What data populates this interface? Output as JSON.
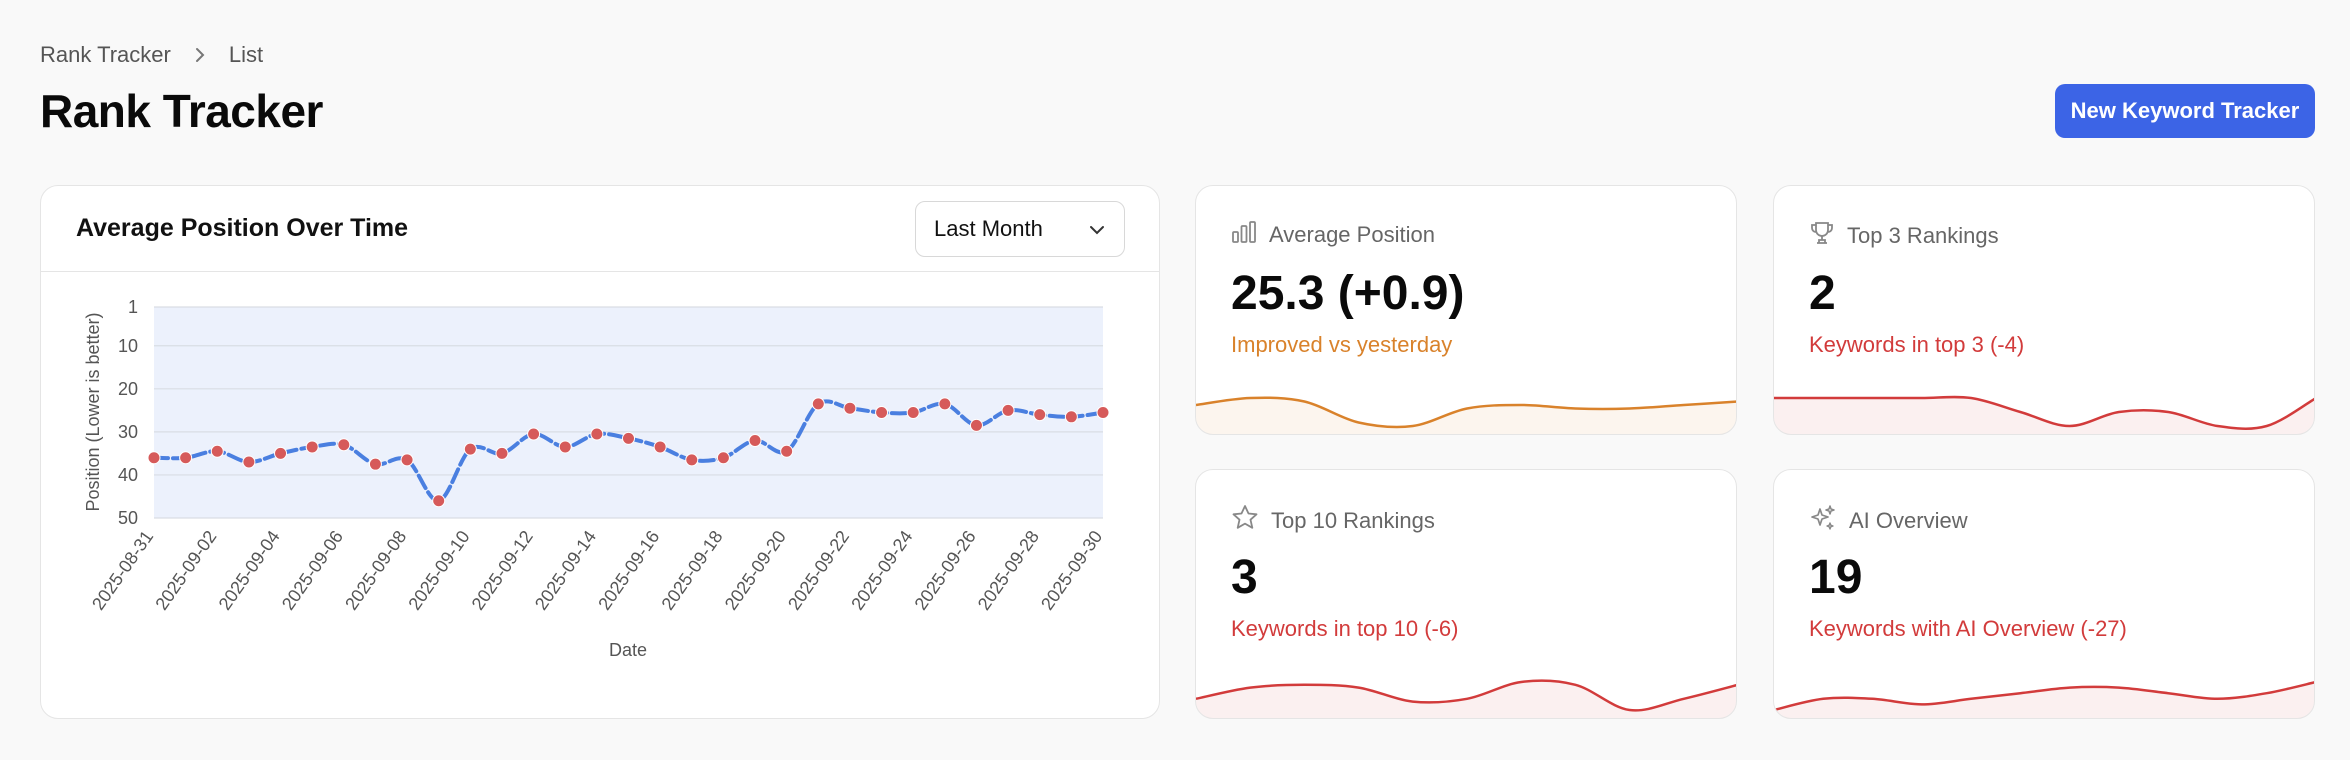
{
  "breadcrumb": {
    "root": "Rank Tracker",
    "current": "List"
  },
  "page": {
    "title": "Rank Tracker"
  },
  "actions": {
    "new_tracker_label": "New Keyword Tracker"
  },
  "colors": {
    "accent": "#3c64e6",
    "line": "#4a7fe0",
    "point": "#d65a5a",
    "improved": "#d9822b",
    "declined": "#d23b3b"
  },
  "chart_card": {
    "title": "Average Position Over Time",
    "range_select": {
      "value": "Last Month"
    }
  },
  "chart_data": {
    "type": "line",
    "title": "Average Position Over Time",
    "xlabel": "Date",
    "ylabel": "Position (Lower is better)",
    "y_inverted": true,
    "ylim": [
      1,
      50
    ],
    "y_ticks": [
      1,
      10,
      20,
      30,
      40,
      50
    ],
    "grid": true,
    "x_tick_labels": [
      "2025-08-31",
      "2025-09-02",
      "2025-09-04",
      "2025-09-06",
      "2025-09-08",
      "2025-09-10",
      "2025-09-12",
      "2025-09-14",
      "2025-09-16",
      "2025-09-18",
      "2025-09-20",
      "2025-09-22",
      "2025-09-24",
      "2025-09-26",
      "2025-09-28",
      "2025-09-30"
    ],
    "x": [
      "2025-08-31",
      "2025-09-01",
      "2025-09-02",
      "2025-09-03",
      "2025-09-04",
      "2025-09-05",
      "2025-09-06",
      "2025-09-07",
      "2025-09-08",
      "2025-09-09",
      "2025-09-10",
      "2025-09-11",
      "2025-09-12",
      "2025-09-13",
      "2025-09-14",
      "2025-09-15",
      "2025-09-16",
      "2025-09-17",
      "2025-09-18",
      "2025-09-19",
      "2025-09-20",
      "2025-09-21",
      "2025-09-22",
      "2025-09-23",
      "2025-09-24",
      "2025-09-25",
      "2025-09-26",
      "2025-09-27",
      "2025-09-28",
      "2025-09-29",
      "2025-09-30"
    ],
    "values": [
      36,
      36,
      34.5,
      37,
      35,
      33.5,
      33,
      37.5,
      36.5,
      46,
      34,
      35,
      30.5,
      33.5,
      30.5,
      31.5,
      33.5,
      36.5,
      36,
      32,
      34.5,
      23.5,
      24.5,
      25.5,
      25.5,
      23.5,
      28.5,
      25,
      26,
      26.5,
      25.5
    ]
  },
  "stats": [
    {
      "title": "Average Position",
      "icon": "bar-chart-icon",
      "value": "25.3 (+0.9)",
      "sub": "Improved vs yesterday",
      "tone": "improved",
      "trend": [
        5,
        3,
        4,
        10,
        11,
        6,
        5,
        6,
        6,
        5,
        4
      ]
    },
    {
      "title": "Top 3 Rankings",
      "icon": "trophy-icon",
      "value": "2",
      "sub": "Keywords in top 3 (-4)",
      "tone": "declined",
      "trend": [
        2,
        2,
        2,
        2,
        2,
        3,
        4,
        3,
        3,
        4,
        4,
        2
      ]
    },
    {
      "title": "Top 10 Rankings",
      "icon": "star-icon",
      "value": "3",
      "sub": "Keywords in top 10 (-6)",
      "tone": "declined",
      "trend": [
        8,
        4,
        3,
        4,
        9,
        8,
        2,
        3,
        12,
        8,
        3
      ]
    },
    {
      "title": "AI Overview",
      "icon": "sparkles-icon",
      "value": "19",
      "sub": "Keywords with AI Overview (-27)",
      "tone": "declined",
      "trend": [
        12,
        10,
        10,
        11,
        10,
        9,
        8,
        8,
        9,
        10,
        9,
        7
      ]
    }
  ]
}
